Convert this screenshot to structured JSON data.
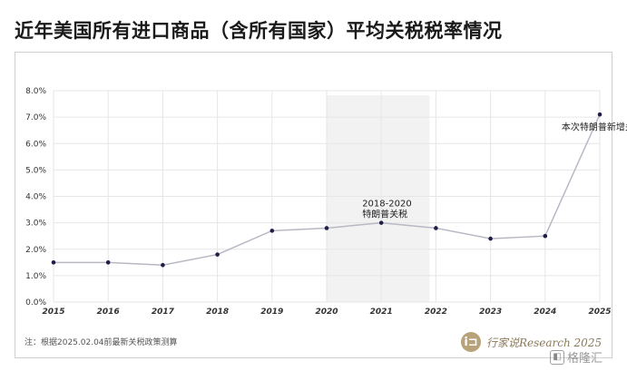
{
  "title": "近年美国所有进口商品（含所有国家）平均关税税率情况",
  "footnote": "注：根据2025.02.04前最新关税政策测算",
  "brand": {
    "icon_text": "i⊐",
    "text": "行家说Research 2025"
  },
  "watermark": {
    "icon_name": "gelonghui-logo-icon",
    "text": "格隆汇"
  },
  "chart_data": {
    "type": "line",
    "x": [
      2015,
      2016,
      2017,
      2018,
      2019,
      2020,
      2021,
      2022,
      2023,
      2024,
      2025
    ],
    "x_tick_labels": [
      "2015",
      "2016",
      "2017",
      "2018",
      "2019",
      "2020",
      "2021",
      "2022",
      "2023",
      "2024",
      "2025"
    ],
    "series": [
      {
        "values": [
          1.5,
          1.5,
          1.4,
          1.8,
          2.7,
          2.8,
          3.0,
          2.8,
          2.4,
          2.5,
          7.1
        ]
      }
    ],
    "ylim": [
      0,
      8
    ],
    "y_ticks": [
      0,
      1,
      2,
      3,
      4,
      5,
      6,
      7,
      8
    ],
    "y_tick_labels": [
      "0.0%",
      "1.0%",
      "2.0%",
      "3.0%",
      "4.0%",
      "5.0%",
      "6.0%",
      "7.0%",
      "8.0%"
    ],
    "grid": true,
    "shaded_region": {
      "x_start": 2020,
      "x_end": 2022
    },
    "annotations": [
      {
        "lines": [
          "2018-2020",
          "特朗普关税"
        ],
        "x": 2021,
        "y": 3.0
      },
      {
        "lines": [
          "本次特朗普新增关税"
        ],
        "x": 2024.3,
        "y": 6.3
      }
    ],
    "colors": {
      "line": "#b8b8c4",
      "marker": "#1f1f4a",
      "grid": "#e6e6e6",
      "shade": "#f2f2f2"
    }
  }
}
